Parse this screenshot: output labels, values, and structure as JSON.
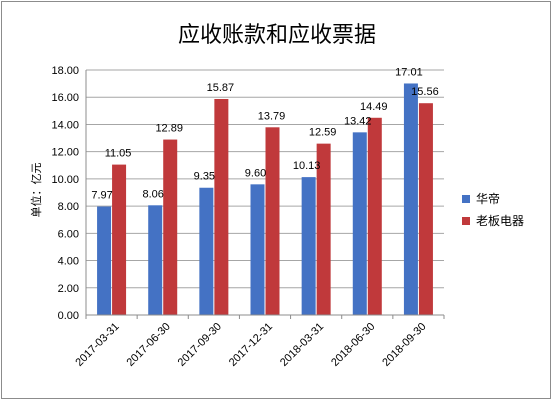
{
  "chart_data": {
    "type": "bar",
    "title": "应收账款和应收票据",
    "ylabel": "单位：亿元",
    "xlabel": "",
    "ylim": [
      0,
      18
    ],
    "ytick_step": 2,
    "ytick_labels": [
      "0.00",
      "2.00",
      "4.00",
      "6.00",
      "8.00",
      "10.00",
      "12.00",
      "14.00",
      "16.00",
      "18.00"
    ],
    "categories": [
      "2017-03-31",
      "2017-06-30",
      "2017-09-30",
      "2017-12-31",
      "2018-03-31",
      "2018-06-30",
      "2018-09-30"
    ],
    "series": [
      {
        "name": "华帝",
        "color": "#4472c4",
        "values": [
          7.97,
          8.06,
          9.35,
          9.6,
          10.13,
          13.42,
          17.01
        ],
        "labels": [
          "7.97",
          "8.06",
          "9.35",
          "9.60",
          "10.13",
          "13.42",
          "17.01"
        ]
      },
      {
        "name": "老板电器",
        "color": "#c0393b",
        "values": [
          11.05,
          12.89,
          15.87,
          13.79,
          12.59,
          14.49,
          15.56
        ],
        "labels": [
          "11.05",
          "12.89",
          "15.87",
          "13.79",
          "12.59",
          "14.49",
          "15.56"
        ]
      }
    ],
    "grid": true,
    "legend_position": "right"
  }
}
